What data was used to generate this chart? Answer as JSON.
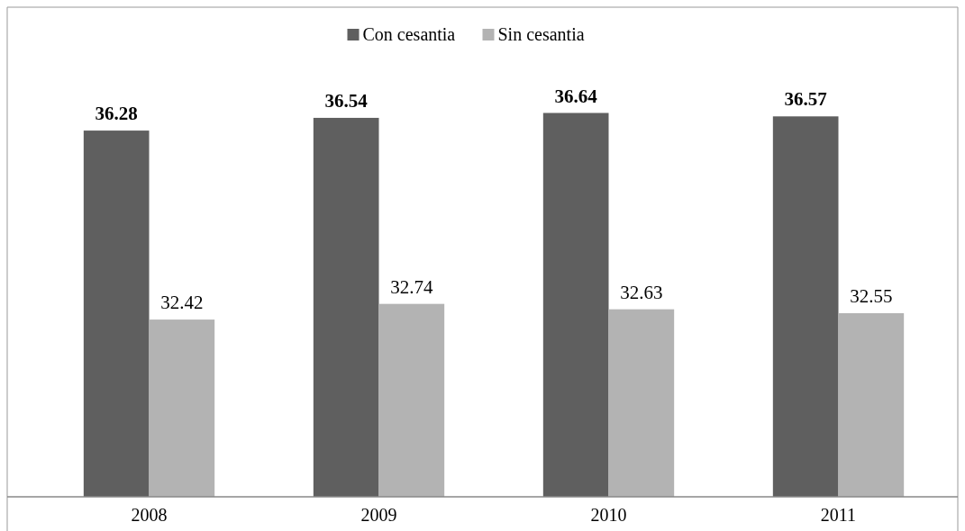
{
  "chart_data": {
    "type": "bar",
    "categories": [
      "2008",
      "2009",
      "2010",
      "2011"
    ],
    "series": [
      {
        "name": "Con cesantia",
        "color": "#5f5f5f",
        "values": [
          36.28,
          36.54,
          36.64,
          36.57
        ]
      },
      {
        "name": "Sin cesantia",
        "color": "#b3b3b3",
        "values": [
          32.42,
          32.74,
          32.63,
          32.55
        ]
      }
    ],
    "ylim": [
      28.8,
      38.8
    ],
    "data_labels": true,
    "legend": "top",
    "tick_labels": "x"
  }
}
